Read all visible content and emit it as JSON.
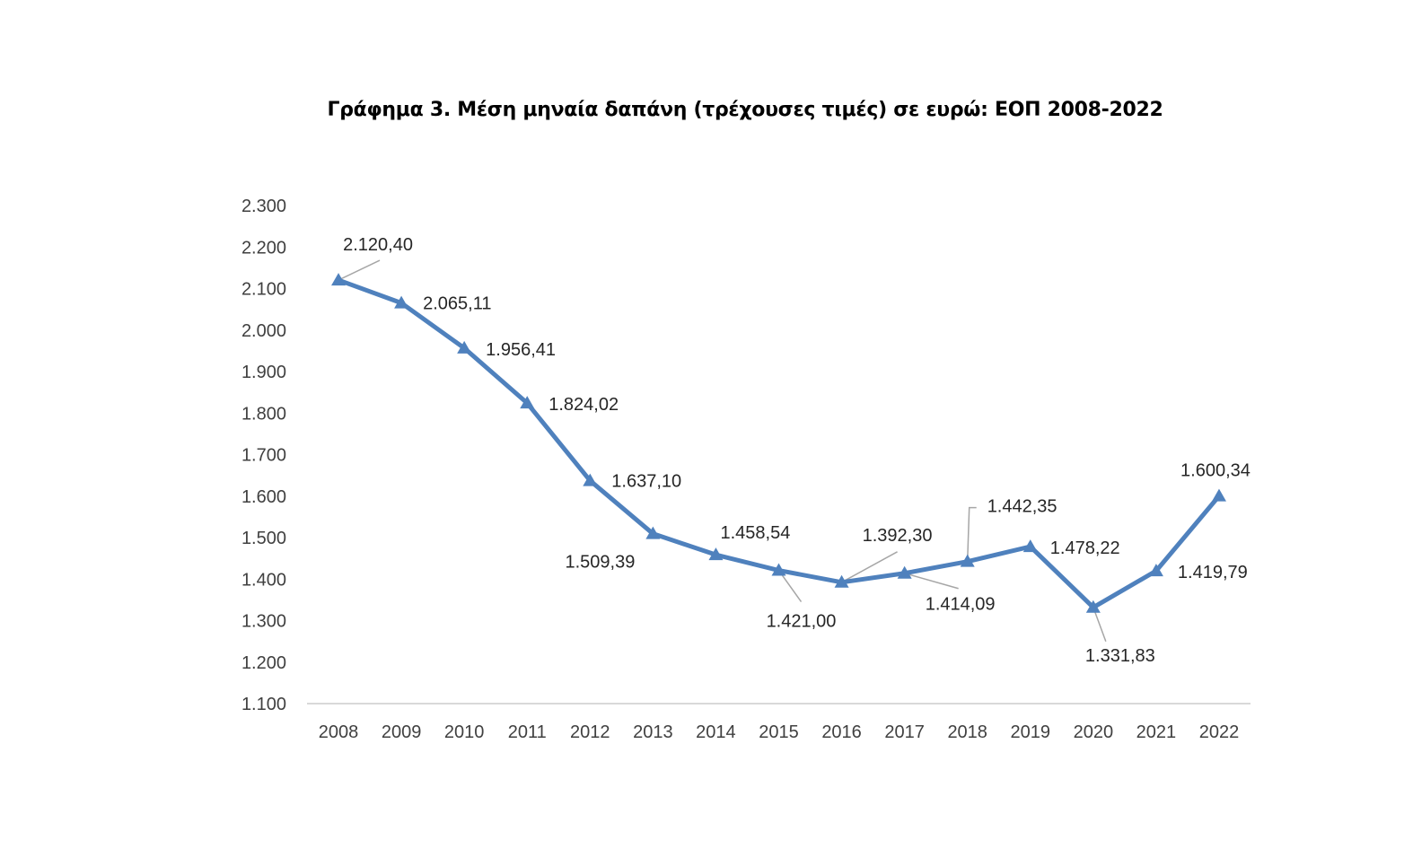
{
  "chart_data": {
    "type": "line",
    "title": "Γράφημα 3. Μέση μηναία δαπάνη (τρέχουσες τιμές) σε ευρώ: ΕΟΠ 2008-2022",
    "xlabel": "",
    "ylabel": "",
    "categories": [
      "2008",
      "2009",
      "2010",
      "2011",
      "2012",
      "2013",
      "2014",
      "2015",
      "2016",
      "2017",
      "2018",
      "2019",
      "2020",
      "2021",
      "2022"
    ],
    "series": [
      {
        "name": "Μέση μηναία δαπάνη",
        "color": "#4F81BD",
        "marker": "triangle",
        "values": [
          2120.4,
          2065.11,
          1956.41,
          1824.02,
          1637.1,
          1509.39,
          1458.54,
          1421.0,
          1392.3,
          1414.09,
          1442.35,
          1478.22,
          1331.83,
          1419.79,
          1600.34
        ],
        "labels": [
          "2.120,40",
          "2.065,11",
          "1.956,41",
          "1.824,02",
          "1.637,10",
          "1.509,39",
          "1.458,54",
          "1.421,00",
          "1.392,30",
          "1.414,09",
          "1.442,35",
          "1.478,22",
          "1.331,83",
          "1.419,79",
          "1.600,34"
        ]
      }
    ],
    "ylim": [
      1100,
      2300
    ],
    "yticks": [
      1100,
      1200,
      1300,
      1400,
      1500,
      1600,
      1700,
      1800,
      1900,
      2000,
      2100,
      2200,
      2300
    ],
    "ytick_labels": [
      "1.100",
      "1.200",
      "1.300",
      "1.400",
      "1.500",
      "1.600",
      "1.700",
      "1.800",
      "1.900",
      "2.000",
      "2.100",
      "2.200",
      "2.300"
    ],
    "grid": false,
    "legend": "none"
  }
}
